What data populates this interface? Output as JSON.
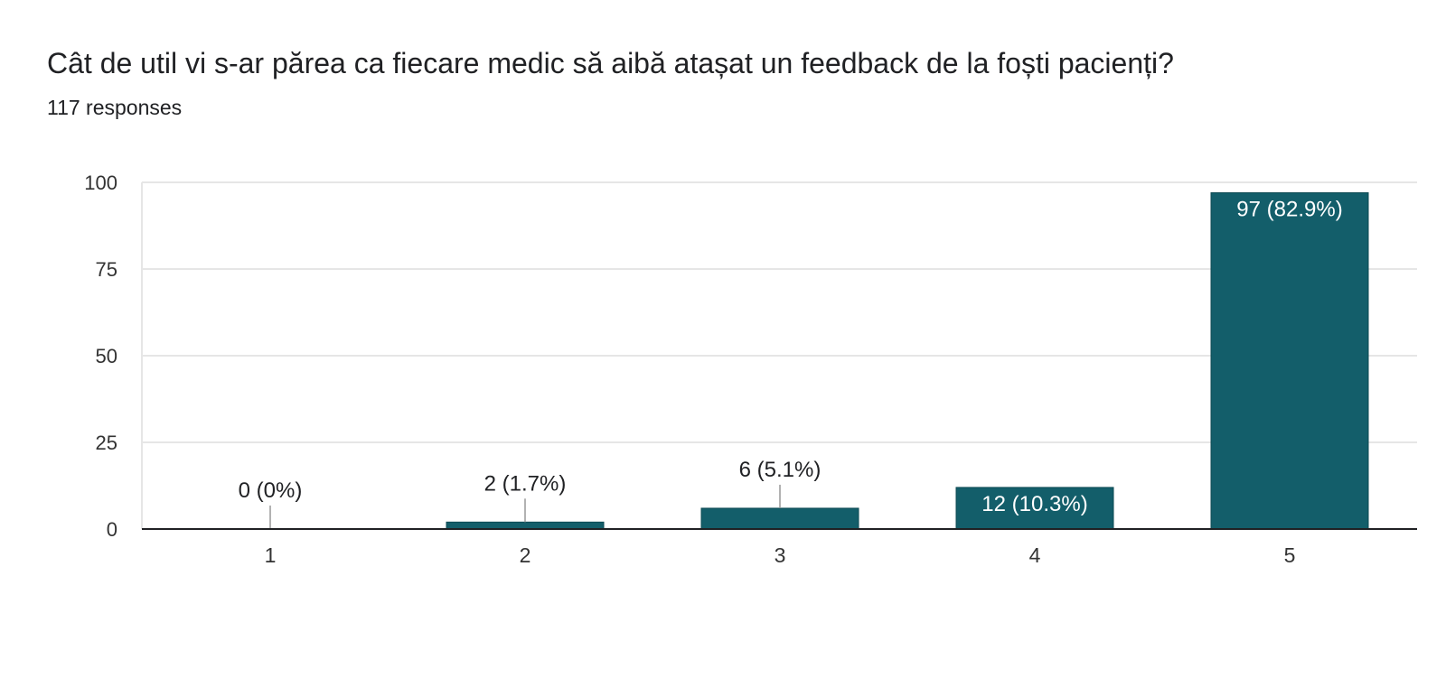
{
  "question": {
    "title": "Cât de util vi s-ar părea ca fiecare medic să aibă atașat un feedback de la foști pacienți?",
    "responses": "117 responses"
  },
  "colors": {
    "bar": "#135e6a",
    "grid": "#e6e6e6",
    "axis": "#202124",
    "text": "#333333",
    "label_inside": "#ffffff",
    "leader": "#999999"
  },
  "chart_data": {
    "type": "bar",
    "categories": [
      "1",
      "2",
      "3",
      "4",
      "5"
    ],
    "values": [
      0,
      2,
      6,
      12,
      97
    ],
    "data_labels": [
      "0 (0%)",
      "2 (1.7%)",
      "6 (5.1%)",
      "12 (10.3%)",
      "97 (82.9%)"
    ],
    "ylim": [
      0,
      100
    ],
    "yticks": [
      "0",
      "25",
      "50",
      "75",
      "100"
    ],
    "ytick_values": [
      0,
      25,
      50,
      75,
      100
    ],
    "xlabel": "",
    "ylabel": "",
    "grid": true,
    "legend": "none"
  }
}
